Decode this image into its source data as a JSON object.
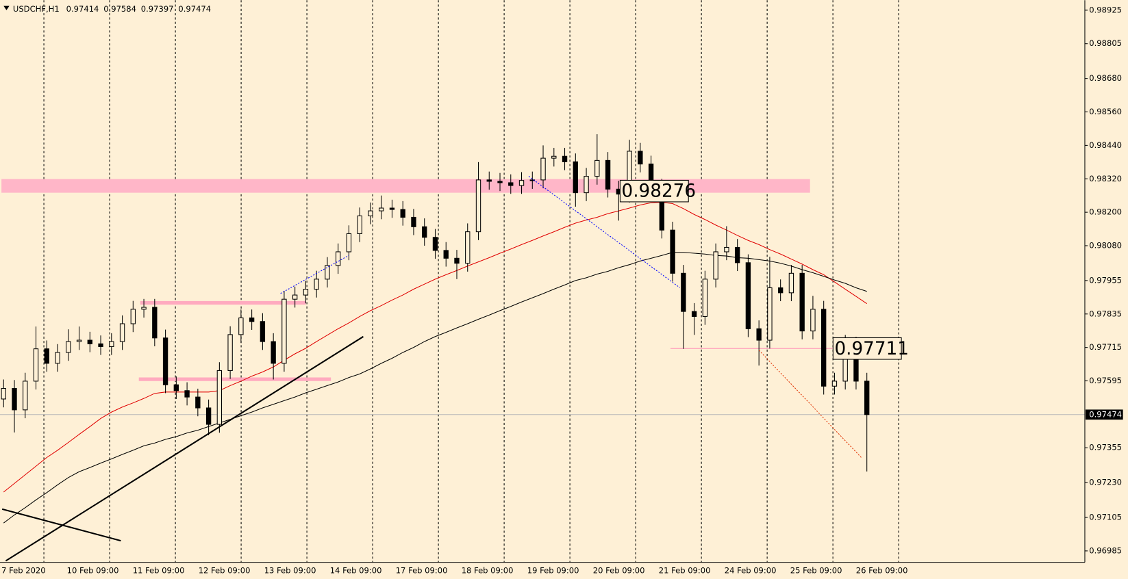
{
  "chart_data": {
    "type": "candlestick",
    "title": "USDCHF,H1",
    "header_values": [
      0.97414,
      0.97584,
      0.97397,
      0.97474
    ],
    "categories": [
      "7 Feb 2020",
      "10 Feb 09:00",
      "11 Feb 09:00",
      "12 Feb 09:00",
      "13 Feb 09:00",
      "14 Feb 09:00",
      "17 Feb 09:00",
      "18 Feb 09:00",
      "19 Feb 09:00",
      "20 Feb 09:00",
      "21 Feb 09:00",
      "24 Feb 09:00",
      "25 Feb 09:00",
      "26 Feb 09:00"
    ],
    "open": [
      0.9753,
      0.97568,
      0.97491,
      0.97594,
      0.9771,
      0.97658,
      0.97697,
      0.97736,
      0.97741,
      0.97728,
      0.97718,
      0.97736,
      0.978,
      0.97852,
      0.97859,
      0.97749,
      0.97581,
      0.9756,
      0.97537,
      0.97498,
      0.97439,
      0.97632,
      0.97761,
      0.97821,
      0.97808,
      0.97736,
      0.97658,
      0.97888,
      0.97903,
      0.97924,
      0.9796,
      0.98009,
      0.98058,
      0.98123,
      0.98187,
      0.98205,
      0.98215,
      0.9821,
      0.98182,
      0.98148,
      0.9811,
      0.98063,
      0.98035,
      0.98017,
      0.9813,
      0.98316,
      0.98311,
      0.98306,
      0.98296,
      0.98314,
      0.98316,
      0.98394,
      0.98401,
      0.98381,
      0.9827,
      0.98329,
      0.98386,
      0.98283,
      0.98265,
      0.98419,
      0.98373,
      0.9829,
      0.98136,
      0.97981,
      0.97844,
      0.97826,
      0.9796,
      0.98058,
      0.98074,
      0.98019,
      0.97782,
      0.97741,
      0.97929,
      0.97911,
      0.97981,
      0.97774,
      0.97852,
      0.97576,
      0.97594,
      0.97723,
      0.97594
    ],
    "high": [
      0.976,
      0.97598,
      0.97624,
      0.9779,
      0.9774,
      0.97727,
      0.9778,
      0.9779,
      0.97771,
      0.97758,
      0.97766,
      0.9783,
      0.97882,
      0.97889,
      0.97889,
      0.97779,
      0.97611,
      0.9759,
      0.97567,
      0.97528,
      0.97662,
      0.97791,
      0.97851,
      0.97851,
      0.97838,
      0.97766,
      0.97918,
      0.97933,
      0.97954,
      0.9799,
      0.98039,
      0.98088,
      0.98153,
      0.98217,
      0.98235,
      0.9826,
      0.98245,
      0.9824,
      0.98212,
      0.98178,
      0.9814,
      0.98093,
      0.98065,
      0.9816,
      0.9838,
      0.98346,
      0.98341,
      0.98336,
      0.98344,
      0.98346,
      0.9844,
      0.98431,
      0.98431,
      0.98411,
      0.98359,
      0.9848,
      0.98416,
      0.98313,
      0.9846,
      0.98449,
      0.98403,
      0.9832,
      0.98166,
      0.98011,
      0.97874,
      0.9799,
      0.98088,
      0.9815,
      0.98104,
      0.98049,
      0.97812,
      0.9804,
      0.97959,
      0.98011,
      0.98011,
      0.979,
      0.97882,
      0.97624,
      0.9776,
      0.97753,
      0.97624
    ],
    "low": [
      0.975,
      0.9741,
      0.97461,
      0.97564,
      0.97628,
      0.97628,
      0.97667,
      0.97706,
      0.97698,
      0.97688,
      0.97688,
      0.97706,
      0.9777,
      0.97822,
      0.97719,
      0.97551,
      0.9753,
      0.97507,
      0.97468,
      0.974,
      0.97409,
      0.97602,
      0.97731,
      0.97778,
      0.97706,
      0.976,
      0.97628,
      0.97858,
      0.97873,
      0.97894,
      0.9793,
      0.97979,
      0.98028,
      0.98093,
      0.98157,
      0.98175,
      0.9818,
      0.98152,
      0.98118,
      0.9808,
      0.98033,
      0.98005,
      0.9796,
      0.97987,
      0.981,
      0.98281,
      0.98276,
      0.98266,
      0.98266,
      0.98284,
      0.98286,
      0.98364,
      0.98351,
      0.9822,
      0.9824,
      0.98299,
      0.98253,
      0.9817,
      0.98235,
      0.98343,
      0.9826,
      0.98106,
      0.97951,
      0.9771,
      0.9776,
      0.97796,
      0.9793,
      0.98028,
      0.97989,
      0.97752,
      0.9765,
      0.97711,
      0.97881,
      0.97881,
      0.97744,
      0.97744,
      0.97546,
      0.97546,
      0.97564,
      0.97564,
      0.9727
    ],
    "close": [
      0.97568,
      0.97491,
      0.97594,
      0.9771,
      0.97658,
      0.97697,
      0.97736,
      0.97741,
      0.97728,
      0.97718,
      0.97736,
      0.978,
      0.97852,
      0.97859,
      0.97749,
      0.97581,
      0.9756,
      0.97537,
      0.97498,
      0.97439,
      0.97632,
      0.97761,
      0.97821,
      0.97808,
      0.97736,
      0.97658,
      0.97888,
      0.97903,
      0.97924,
      0.9796,
      0.98009,
      0.98058,
      0.98123,
      0.98187,
      0.98205,
      0.98215,
      0.9821,
      0.98182,
      0.98148,
      0.9811,
      0.98063,
      0.98035,
      0.98017,
      0.9813,
      0.98316,
      0.98311,
      0.98306,
      0.98296,
      0.98314,
      0.98316,
      0.98394,
      0.98401,
      0.98381,
      0.9827,
      0.98329,
      0.98386,
      0.98283,
      0.98265,
      0.98419,
      0.98373,
      0.9829,
      0.98136,
      0.97981,
      0.97844,
      0.97826,
      0.9796,
      0.98058,
      0.98074,
      0.98019,
      0.97782,
      0.97741,
      0.97929,
      0.97911,
      0.97981,
      0.97774,
      0.97852,
      0.97576,
      0.97594,
      0.97723,
      0.97594,
      0.97474
    ],
    "ma_lines": [
      {
        "color": "#e00000",
        "values": [
          0.97196,
          0.97227,
          0.97258,
          0.97289,
          0.9732,
          0.97346,
          0.97374,
          0.97403,
          0.97431,
          0.9746,
          0.97483,
          0.97501,
          0.97516,
          0.97532,
          0.9755,
          0.97555,
          0.97555,
          0.97555,
          0.97555,
          0.97555,
          0.9756,
          0.97578,
          0.97594,
          0.97612,
          0.97627,
          0.97645,
          0.97669,
          0.97692,
          0.97712,
          0.97736,
          0.97759,
          0.97782,
          0.97803,
          0.97826,
          0.97847,
          0.97865,
          0.97885,
          0.97903,
          0.97924,
          0.97942,
          0.9796,
          0.97976,
          0.97991,
          0.98007,
          0.98022,
          0.98037,
          0.98053,
          0.98068,
          0.98084,
          0.98099,
          0.98115,
          0.9813,
          0.98146,
          0.98161,
          0.98172,
          0.98182,
          0.98195,
          0.98205,
          0.98215,
          0.98226,
          0.98234,
          0.98236,
          0.98231,
          0.98213,
          0.98192,
          0.98174,
          0.98154,
          0.98136,
          0.98117,
          0.98099,
          0.98084,
          0.98066,
          0.9805,
          0.98032,
          0.98014,
          0.97994,
          0.97976,
          0.9795,
          0.97924,
          0.97898,
          0.97872
        ]
      },
      {
        "color": "#000000",
        "values": [
          0.97085,
          0.97114,
          0.9714,
          0.97168,
          0.97194,
          0.97222,
          0.97248,
          0.97269,
          0.97284,
          0.973,
          0.97315,
          0.97331,
          0.97346,
          0.97362,
          0.97372,
          0.97385,
          0.97395,
          0.97408,
          0.97418,
          0.97431,
          0.97444,
          0.97457,
          0.9747,
          0.97483,
          0.97498,
          0.97511,
          0.97524,
          0.97537,
          0.97552,
          0.97565,
          0.97578,
          0.97591,
          0.97607,
          0.9762,
          0.97638,
          0.97658,
          0.97676,
          0.97697,
          0.97715,
          0.97736,
          0.97754,
          0.97769,
          0.97785,
          0.978,
          0.97816,
          0.97831,
          0.97847,
          0.97862,
          0.97878,
          0.97893,
          0.97908,
          0.97924,
          0.97939,
          0.97955,
          0.97965,
          0.97978,
          0.97988,
          0.98001,
          0.98012,
          0.98025,
          0.98035,
          0.98045,
          0.98056,
          0.98056,
          0.98053,
          0.9805,
          0.98045,
          0.98043,
          0.98037,
          0.98035,
          0.9803,
          0.98025,
          0.98017,
          0.98007,
          0.97994,
          0.97983,
          0.9797,
          0.97957,
          0.97945,
          0.97929,
          0.97916
        ]
      }
    ],
    "ylim": [
      0.96944,
      0.98961
    ],
    "yticks": [
      0.98925,
      0.98805,
      {
        "value": 0.9868,
        "label": "0.98680"
      },
      {
        "value": 0.9856,
        "label": "0.98560"
      },
      {
        "value": 0.9844,
        "label": "0.98440"
      },
      {
        "value": 0.9832,
        "label": "0.98320"
      },
      {
        "value": 0.982,
        "label": "0.98200"
      },
      {
        "value": 0.9808,
        "label": "0.98080"
      },
      0.97955,
      0.97835,
      0.97715,
      0.97595,
      0.97355,
      {
        "value": 0.9723,
        "label": "0.97230"
      },
      0.97105,
      0.96985
    ],
    "last_price": 0.97474,
    "zone": [
      0.9827,
      0.98319
    ],
    "levels": [
      0.97875,
      0.97601,
      0.97711
    ],
    "annotations": [
      0.98276,
      0.97711
    ]
  }
}
